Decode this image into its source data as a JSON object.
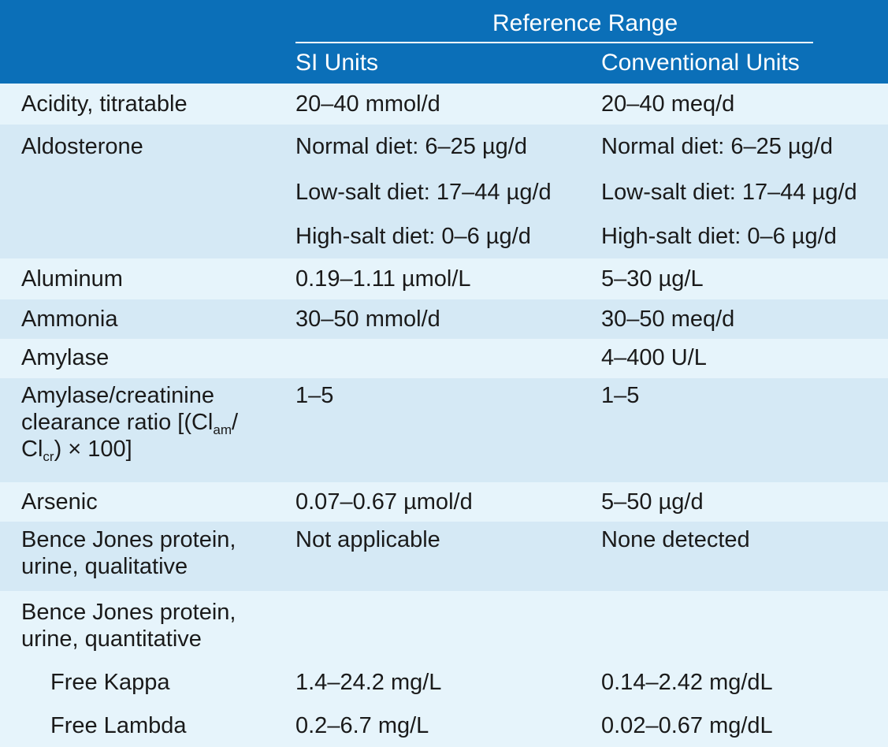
{
  "header": {
    "group_label": "Reference Range",
    "col_si": "SI Units",
    "col_conventional": "Conventional Units"
  },
  "rows": {
    "acidity": {
      "name": "Acidity, titratable",
      "si": "20–40 mmol/d",
      "conv": "20–40 meq/d"
    },
    "aldosterone": {
      "name": "Aldosterone",
      "si": [
        "Normal diet: 6–25 µg/d",
        "Low-salt diet: 17–44 µg/d",
        "High-salt diet: 0–6 µg/d"
      ],
      "conv": [
        "Normal diet: 6–25 µg/d",
        "Low-salt diet: 17–44 µg/d",
        "High-salt diet: 0–6 µg/d"
      ]
    },
    "aluminum": {
      "name": "Aluminum",
      "si": "0.19–1.11 µmol/L",
      "conv": "5–30 µg/L"
    },
    "ammonia": {
      "name": "Ammonia",
      "si": "30–50 mmol/d",
      "conv": "30–50 meq/d"
    },
    "amylase": {
      "name": "Amylase",
      "si": "",
      "conv": "4–400 U/L"
    },
    "amylase_ratio": {
      "name_line1": "Amylase/creatinine",
      "name_line2_prefix": "clearance ratio [(Cl",
      "name_line2_sub": "am",
      "name_line2_suffix": "/",
      "name_line3_prefix": "Cl",
      "name_line3_sub": "cr",
      "name_line3_suffix": ") × 100]",
      "si": "1–5",
      "conv": "1–5"
    },
    "arsenic": {
      "name": "Arsenic",
      "si": "0.07–0.67 µmol/d",
      "conv": "5–50 µg/d"
    },
    "bj_qual": {
      "name_line1": "Bence Jones protein,",
      "name_line2": "urine, qualitative",
      "si": "Not applicable",
      "conv": "None detected"
    },
    "bj_quant": {
      "name_line1": "Bence Jones protein,",
      "name_line2": "urine, quantitative",
      "kappa": {
        "name": "Free Kappa",
        "si": "1.4–24.2 mg/L",
        "conv": "0.14–2.42 mg/dL"
      },
      "lambda": {
        "name": "Free Lambda",
        "si": "0.2–6.7 mg/L",
        "conv": "0.02–0.67 mg/dL"
      }
    }
  },
  "colors": {
    "header_bg": "#0b6fb8",
    "row_light": "#e6f4fb",
    "row_dark": "#d5e9f5"
  }
}
